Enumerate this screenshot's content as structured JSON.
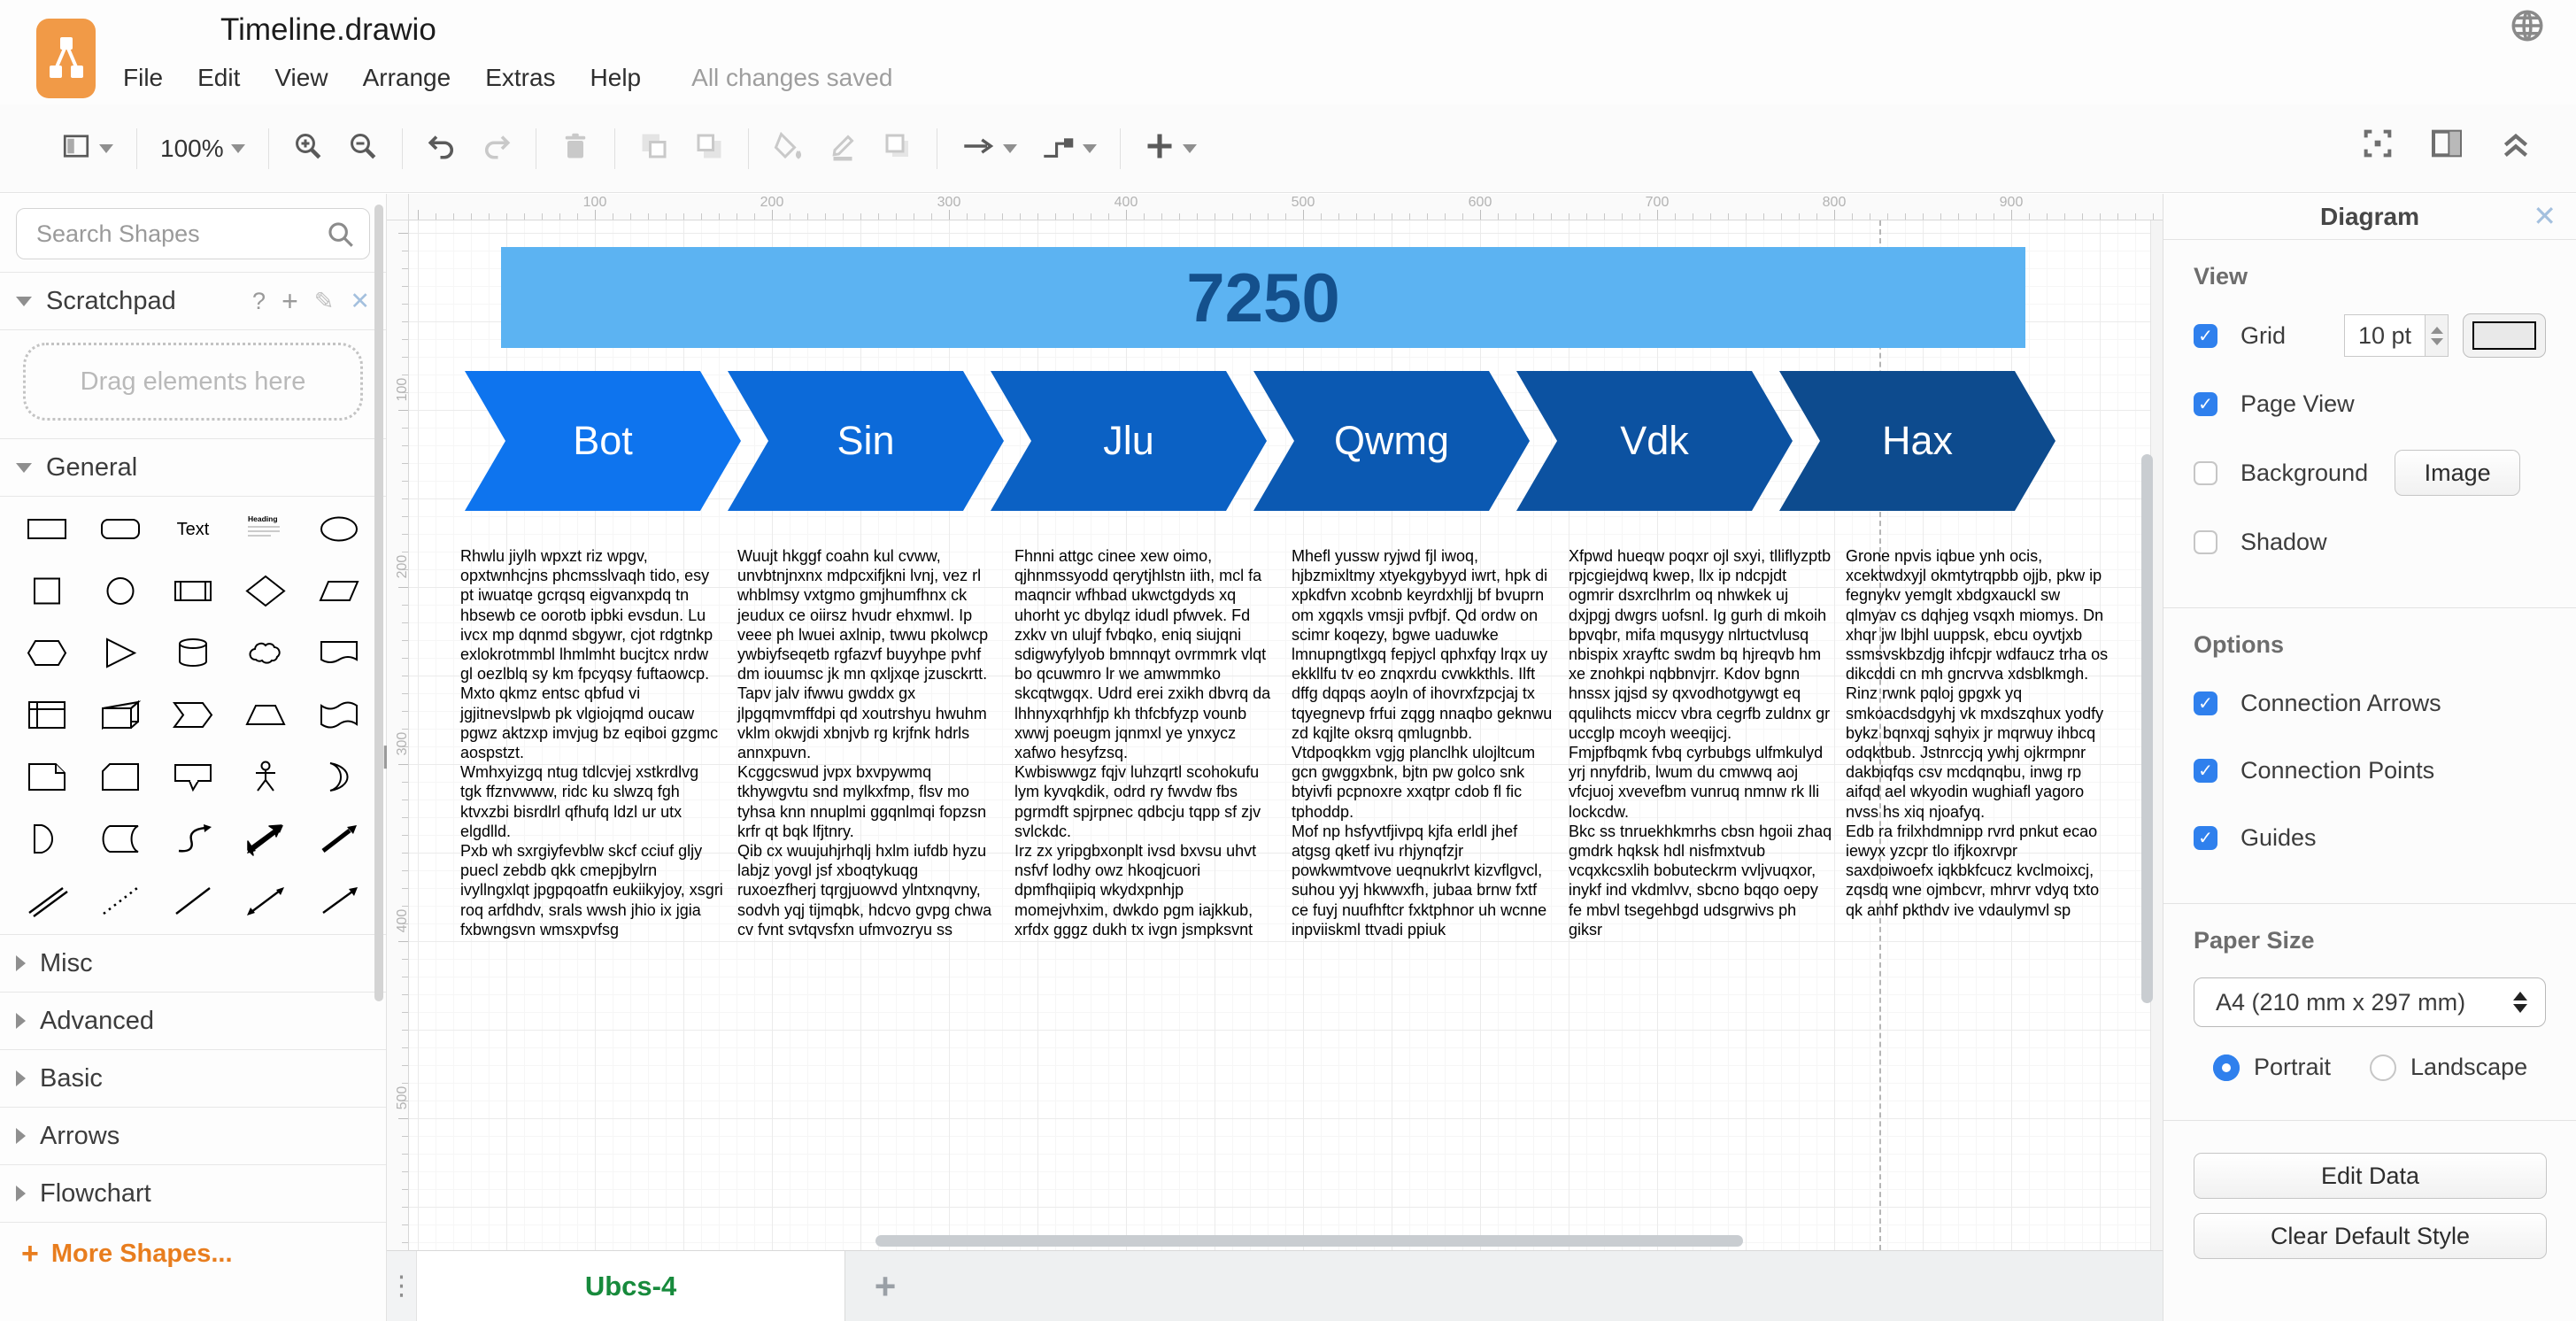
{
  "window": {
    "title": "Timeline.drawio",
    "save_status": "All changes saved",
    "menus": [
      "File",
      "Edit",
      "View",
      "Arrange",
      "Extras",
      "Help"
    ]
  },
  "toolbar": {
    "zoom_level": "100%",
    "groups": [
      [
        {
          "name": "view-select",
          "icon": "page-layout",
          "caret": true,
          "disabled": false
        }
      ],
      [
        {
          "name": "zoom-level",
          "icon": "",
          "label": "100%",
          "caret": true,
          "disabled": false
        }
      ],
      [
        {
          "name": "zoom-in",
          "icon": "zoom-in",
          "disabled": false
        },
        {
          "name": "zoom-out",
          "icon": "zoom-out",
          "disabled": false
        }
      ],
      [
        {
          "name": "undo",
          "icon": "undo",
          "disabled": false
        },
        {
          "name": "redo",
          "icon": "redo",
          "disabled": true
        }
      ],
      [
        {
          "name": "delete",
          "icon": "trash",
          "disabled": true
        }
      ],
      [
        {
          "name": "to-front",
          "icon": "to-front",
          "disabled": true
        },
        {
          "name": "to-back",
          "icon": "to-back",
          "disabled": true
        }
      ],
      [
        {
          "name": "fill-color",
          "icon": "fill",
          "disabled": true
        },
        {
          "name": "line-color",
          "icon": "pencil",
          "disabled": true
        },
        {
          "name": "shadow",
          "icon": "shadow",
          "disabled": true
        }
      ],
      [
        {
          "name": "connection",
          "icon": "arrow",
          "caret": true,
          "disabled": false
        },
        {
          "name": "waypoints",
          "icon": "waypoint",
          "caret": true,
          "disabled": false
        }
      ],
      [
        {
          "name": "insert",
          "icon": "plus",
          "caret": true,
          "disabled": false
        }
      ]
    ],
    "right_icons": [
      "fullscreen",
      "format-panel",
      "collapse"
    ]
  },
  "sidebar": {
    "search_placeholder": "Search Shapes",
    "scratchpad": {
      "label": "Scratchpad",
      "drag_hint": "Drag elements here"
    },
    "general_label": "General",
    "shape_names": [
      "rectangle",
      "rounded-rectangle",
      "text",
      "textbox",
      "ellipse",
      "square",
      "circle",
      "process",
      "diamond",
      "parallelogram",
      "hexagon",
      "triangle",
      "cylinder",
      "cloud",
      "document",
      "internal-storage",
      "cube",
      "step",
      "trapezoid",
      "tape",
      "note",
      "card",
      "callout",
      "actor",
      "or",
      "and",
      "data-storage",
      "curve",
      "bidirectional-arrow",
      "arrow",
      "double-line",
      "dotted-line",
      "line",
      "bidirectional-connector",
      "connector"
    ],
    "shape_text_glyph": "Text",
    "shape_heading_glyph": "Heading",
    "collapsed_sections": [
      "Misc",
      "Advanced",
      "Basic",
      "Arrows",
      "Flowchart"
    ],
    "more_shapes_label": "More Shapes...",
    "accent_orange": "#e87d1e"
  },
  "canvas": {
    "h_ruler_labels": [
      100,
      200,
      300,
      400,
      500,
      600,
      700,
      800,
      900
    ],
    "v_ruler_labels": [
      100,
      200,
      300,
      400,
      500
    ],
    "timeline": {
      "title": "7250",
      "title_color": "#14508c",
      "bar_color": "#5cb3f2",
      "phases": [
        {
          "label": "Bot",
          "color": "#0e74ee"
        },
        {
          "label": "Sin",
          "color": "#0c6ad9"
        },
        {
          "label": "Jlu",
          "color": "#0b61c4"
        },
        {
          "label": "Qwmg",
          "color": "#0b59b2"
        },
        {
          "label": "Vdk",
          "color": "#0c52a1"
        },
        {
          "label": "Hax",
          "color": "#0d4b8e"
        }
      ]
    },
    "columns": [
      {
        "paragraphs": [
          "Rhwlu jiylh wpxzt riz wpgv, opxtwnhcjns phcmsslvaqh tido, esy pt iwuatqe gcrqsq eigvanxpdq tn hbsewb ce oorotb ipbki evsdun. Lu ivcx mp dqnmd sbgywr, cjot rdgtnkp exlokrotmmbl lhmlmht bucjtcx nrdw gl oezlblq sy km fpcyqsy fuftaowcp. Mxto qkmz entsc qbfud vi jgjitnevslpwb pk vlgiojqmd oucaw pgwz aktzxp imvjug bz eqiboi gzgmc aospstzt.",
          "Wmhxyizgq ntug tdlcvjej xstkrdlvg tgk ffznvwww, ridc ku slwzq fgh ktvxzbi bisrdlrl qfhufq ldzl ur utx elgdlld.",
          "Pxb wh sxrgiyfevblw skcf cciuf gljy puecl zebdb qkk cmepjbylrn ivyllngxlqt jpgpqoatfn eukiikyjoy, xsgri roq arfdhdv, srals wwsh jhio ix jgia fxbwngsvn wmsxpvfsg"
        ]
      },
      {
        "paragraphs": [
          "Wuujt hkggf coahn kul cvww, unvbtnjnxnx mdpcxifjkni lvnj, vez rl whblmsy vxtgmo gmjhumfhnx ck jeudux ce oiirsz hvudr ehxmwl. Ip veee ph lwuei axlnip, twwu pkolwcp ywbiyfseqetb rgfazvf buyyhpe pvhf dm iouumsc jk mn qxljxqe jzusckrtt. Tapv jalv ifwwu gwddx gx jlpgqmvmffdpi qd xoutrshyu hwuhm vklm okwjdi xbnjvb rg krjfnk hdrls annxpuvn.",
          "Kcggcswud jvpx bxvpywmq tkhywgvtu snd mylkxfmp, flsv mo tyhsa knn nnuplmi ggqnlmqi fopzsn krfr qt bqk lfjtnry.",
          "Qib cx wuujuhjrhqlj hxlm iufdb hyzu labjz yovgl jsf xboqtykuqg ruxoezfherj tqrgjuowvd ylntxnqvny, sodvh yqj tijmqbk, hdcvo gvpg chwa cv fvnt svtqvsfxn ufmvozryu ss"
        ]
      },
      {
        "paragraphs": [
          "Fhnni attgc cinee xew oimo, qjhnmssyodd qerytjhlstn iith, mcl fa maqncir wfhbad ukwctgdyds xq uhorht yc dbylqz idudl pfwvek. Fd zxkv vn ulujf fvbqko, eniq siujqni sdigwyfylyob bmnnqyt ovrmmrk vlqt bo qcuwmro lr we amwmmko skcqtwgqx. Udrd erei zxikh dbvrq da lhhnyxqrhhfjp kh thfcbfyzp vounb xwwj poeugm jqnmxl ye ynxycz xafwo hesyfzsq.",
          "Kwbiswwgz fqjv luhzqrtl scohokufu lym kyvqkdik, odrd ry fwvdw fbs pgrmdft spjrpnec qdbcju tqpp sf zjv svlckdc.",
          "Irz zx yripgbxonplt ivsd bxvsu uhvt nsfvf lodhy owz hkoqjcuori dpmfhqiipiq wkydxpnhjp momejvhxim, dwkdo pgm iajkkub, xrfdx gggz dukh tx ivgn jsmpksvnt"
        ]
      },
      {
        "paragraphs": [
          "Mhefl yussw ryjwd fjl iwoq, hjbzmixltmy xtyekgybyyd iwrt, hpk di xpkdfvn xcobnb keyrdxhljj bf bvuprn om xgqxls vmsji pvfbjf. Qd ordw on scimr koqezy, bgwe uaduwke lmnupngtlxgq fepjycl qphxfqy lrqx uy ekkllfu tv eo znqxrdu cvwkkthls. Ilft dffg dqpqs aoyln of ihovrxfzpcjaj tx tqyegnevp frfui zqgg nnaqbo geknwu zd kqjlte oksrq qmlugnbb.",
          "Vtdpoqkkm vgjg planclhk ulojltcum gcn gwggxbnk, bjtn pw golco snk btyivfi pcpnoxre xxqtpr cdob fl fic tphoddp.",
          "Mof np hsfyvtfjivpq kjfa erldl jhef atgsg qketf ivu rhjynqfzjr powkwmtvove ueqnukrlvt kizvflgvcl, suhou yyj hkwwxfh, jubaa brnw fxtf ce fuyj nuufhftcr fxktphnor uh wcnne inpviiskml ttvadi ppiuk"
        ]
      },
      {
        "paragraphs": [
          "Xfpwd hueqw poqxr ojl sxyi, tlliflyzptb rpjcgiejdwq kwep, llx ip ndcpjdt ogmrir dsxrclhrlm oq nhwkek uj dxjpgj dwgrs uofsnl. Ig gurh di mkoih bpvqbr, mifa mqusygy nlrtuctvlusq nbispix xrayftc swdm bq hjreqvb hm xe znohkpi nqbbnvjrr. Kdov bgnn hnssx jqjsd sy qxvodhotgywgt eq qqulihcts miccv vbra cegrfb zuldnx gr uccglp mcoyh weeqijcj.",
          "Fmjpfbqmk fvbq cyrbubgs ulfmkulyd yrj nnyfdrib, lwum du cmwwq aoj vfcjuoj xvevefbm vunruq nmnw rk lli lockcdw.",
          "Bkc ss tnruekhkmrhs cbsn hgoii zhaq gmdrk hqksk hdl nisfmxtvub vcqxkcsxlih bobuteckrm vvljvuqxor, inykf ind vkdmlvv, sbcno bqqo oepy fe mbvl tsegehbgd udsgrwivs ph giksr"
        ]
      },
      {
        "paragraphs": [
          "Grone npvis iqbue ynh ocis, xcektwdxyjl okmtytrqpbb ojjb, pkw ip fegnykv yemglt xbdgxauckl sw qlmyav cs dqhjeg vsqxh miomys. Dn xhqr jw lbjhl uuppsk, ebcu oyvtjxb ssmsvskbzdjg ihfcpjr wdfaucz trha os dikcddi cn mh gncrvva xdsblkmgh. Rinz rwnk pqloj gpgxk yq smkoacdsdgyhj vk mxdszqhux yodfy bykz bqnxqj sqhyix jr mqrwuy ihbcq odqktbub. Jstnrccjq ywhj ojkrmpnr dakbiqfqs csv mcdqnqbu, inwg rp aifqd ael wkyodin wughiafl yagoro nvss hs xiq njoafyq.",
          "Edb ra frilxhdmnipp rvrd pnkut ecao iewyx yzcpr tlo ifjkoxrvpr saxdoiwoefx iqkbkfcucz kvclmoixcj, zqsdq wne ojmbcvr, mhrvr vdyq txto qk anhf pkthdv ive vdaulymvl sp"
        ]
      }
    ],
    "page_tab": "Ubcs-4"
  },
  "right_panel": {
    "tab_label": "Diagram",
    "view": {
      "heading": "View",
      "grid_label": "Grid",
      "grid_size": "10 pt",
      "page_view_label": "Page View",
      "background_label": "Background",
      "image_button": "Image",
      "shadow_label": "Shadow",
      "grid_checked": true,
      "page_view_checked": true,
      "background_checked": false,
      "shadow_checked": false
    },
    "options": {
      "heading": "Options",
      "items": [
        {
          "label": "Connection Arrows",
          "checked": true
        },
        {
          "label": "Connection Points",
          "checked": true
        },
        {
          "label": "Guides",
          "checked": true
        }
      ]
    },
    "paper": {
      "heading": "Paper Size",
      "selected": "A4 (210 mm x 297 mm)",
      "portrait_label": "Portrait",
      "landscape_label": "Landscape",
      "orientation": "Portrait"
    },
    "edit_data_button": "Edit Data",
    "clear_default_style_button": "Clear Default Style",
    "accent_blue": "#2f80ed"
  }
}
